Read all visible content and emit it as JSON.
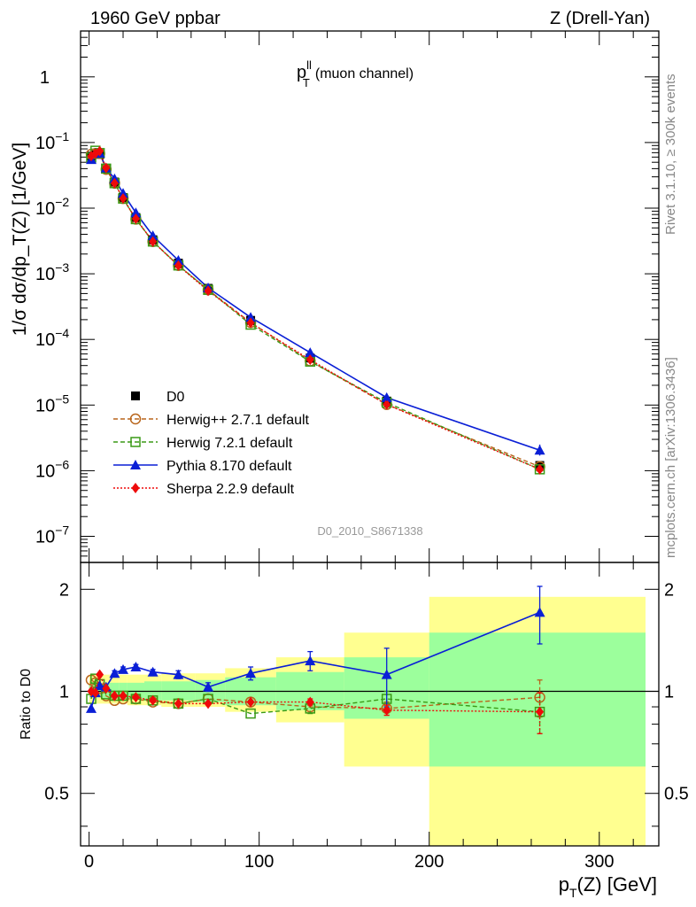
{
  "header": {
    "left": "1960 GeV ppbar",
    "right": "Z (Drell-Yan)"
  },
  "side_labels": {
    "rivet": "Rivet 3.1.10, ≥ 300k events",
    "mcplots": "mcplots.cern.ch [arXiv:1306.3436]"
  },
  "watermark": "D0_2010_S8671338",
  "colors": {
    "data": "#000000",
    "herwigpp": "#b8651b",
    "herwig7": "#3a9a16",
    "pythia": "#0a1fd6",
    "sherpa": "#ee0a0a",
    "band_inner": "#9cff9c",
    "band_outer": "#ffff90"
  },
  "chart_data": [
    {
      "type": "line",
      "title_main": "p",
      "title_sup": "ll",
      "title_sub": "T",
      "title_tail": "(muon channel)",
      "ylabel": "1/σ  dσ/dp_T(Z) [1/GeV]",
      "yscale": "log",
      "ylim": [
        4e-08,
        5
      ],
      "xlim": [
        -5,
        335
      ],
      "ytick_labels": [
        {
          "base": "1",
          "exp": ""
        },
        {
          "base": "10",
          "exp": "−1"
        },
        {
          "base": "10",
          "exp": "−2"
        },
        {
          "base": "10",
          "exp": "−3"
        },
        {
          "base": "10",
          "exp": "−4"
        },
        {
          "base": "10",
          "exp": "−5"
        },
        {
          "base": "10",
          "exp": "−6"
        },
        {
          "base": "10",
          "exp": "−7"
        }
      ],
      "ytick_values": [
        1,
        0.1,
        0.01,
        0.001,
        0.0001,
        1e-05,
        1e-06,
        1e-07
      ],
      "x": [
        1.25,
        3.75,
        6.25,
        10,
        15,
        20,
        27.5,
        37.5,
        52.5,
        70,
        95,
        130,
        175,
        265
      ],
      "bin_edges": [
        0,
        2.5,
        5,
        7.5,
        12.5,
        17.5,
        22.5,
        32.5,
        42.5,
        62.5,
        80,
        110,
        150,
        200,
        330
      ],
      "series": [
        {
          "name": "D0",
          "key": "data",
          "values": [
            0.062,
            0.069,
            0.066,
            0.04,
            0.025,
            0.0145,
            0.0072,
            0.0033,
            0.00145,
            0.0006,
            0.000195,
            5.2e-05,
            1.15e-05,
            1.2e-06
          ]
        },
        {
          "name": "Herwig++ 2.7.1 default",
          "key": "herwigpp",
          "values": [
            0.066,
            0.068,
            0.068,
            0.039,
            0.024,
            0.014,
            0.0068,
            0.0031,
            0.00134,
            0.00057,
            0.000181,
            4.7e-05,
            1.02e-05,
            1.15e-06
          ]
        },
        {
          "name": "Herwig 7.2.1 default",
          "key": "herwig7",
          "values": [
            0.059,
            0.075,
            0.069,
            0.04,
            0.024,
            0.014,
            0.0068,
            0.0031,
            0.00134,
            0.00057,
            0.000168,
            4.6e-05,
            1.09e-05,
            1.05e-06
          ]
        },
        {
          "name": "Pythia 8.170 default",
          "key": "pythia",
          "values": [
            0.055,
            0.068,
            0.069,
            0.041,
            0.028,
            0.0168,
            0.0085,
            0.0038,
            0.0016,
            0.00061,
            0.000217,
            6.3e-05,
            1.3e-05,
            2.05e-06
          ]
        },
        {
          "name": "Sherpa 2.2.9 default",
          "key": "sherpa",
          "values": [
            0.062,
            0.068,
            0.074,
            0.041,
            0.024,
            0.014,
            0.0069,
            0.0031,
            0.00133,
            0.00055,
            0.000179,
            4.9e-05,
            1.02e-05,
            1.05e-06
          ]
        }
      ]
    },
    {
      "type": "line",
      "ylabel": "Ratio to D0",
      "xlabel_main": "p",
      "xlabel_sub": "T",
      "xlabel_tail": "(Z) [GeV]",
      "yscale": "log",
      "ylim": [
        0.35,
        2.4
      ],
      "xlim": [
        -5,
        335
      ],
      "ytick_labels": [
        "0.5",
        "1",
        "2"
      ],
      "ytick_values": [
        0.5,
        1,
        2
      ],
      "xtick_labels": [
        "0",
        "100",
        "200",
        "300"
      ],
      "xtick_values": [
        0,
        100,
        200,
        300
      ],
      "x": [
        1.25,
        3.75,
        6.25,
        10,
        15,
        20,
        27.5,
        37.5,
        52.5,
        70,
        95,
        130,
        175,
        265
      ],
      "bin_edges": [
        0,
        2.5,
        5,
        7.5,
        12.5,
        17.5,
        22.5,
        32.5,
        42.5,
        62.5,
        80,
        110,
        150,
        200,
        330
      ],
      "band_inner": [
        [
          0.96,
          1.05
        ],
        [
          0.96,
          1.05
        ],
        [
          0.96,
          1.05
        ],
        [
          0.95,
          1.06
        ],
        [
          0.95,
          1.06
        ],
        [
          0.95,
          1.06
        ],
        [
          0.95,
          1.06
        ],
        [
          0.94,
          1.07
        ],
        [
          0.94,
          1.07
        ],
        [
          0.93,
          1.08
        ],
        [
          0.91,
          1.1
        ],
        [
          0.88,
          1.14
        ],
        [
          0.83,
          1.26
        ],
        [
          0.6,
          1.49
        ]
      ],
      "band_outer": [
        [
          0.92,
          1.12
        ],
        [
          0.92,
          1.12
        ],
        [
          0.92,
          1.12
        ],
        [
          0.92,
          1.12
        ],
        [
          0.92,
          1.12
        ],
        [
          0.92,
          1.12
        ],
        [
          0.91,
          1.12
        ],
        [
          0.91,
          1.12
        ],
        [
          0.9,
          1.13
        ],
        [
          0.9,
          1.13
        ],
        [
          0.87,
          1.17
        ],
        [
          0.81,
          1.26
        ],
        [
          0.6,
          1.49
        ],
        [
          0.33,
          1.9
        ]
      ],
      "series": [
        {
          "name": "Herwig++ 2.7.1 default",
          "key": "herwigpp",
          "values": [
            1.08,
            1.06,
            1.02,
            0.97,
            0.94,
            0.95,
            0.95,
            0.93,
            0.92,
            0.95,
            0.93,
            0.9,
            0.89,
            0.96
          ],
          "err": [
            0,
            0,
            0,
            0,
            0,
            0,
            0,
            0,
            0,
            0,
            0,
            0,
            0.04,
            0.12
          ]
        },
        {
          "name": "Herwig 7.2.1 default",
          "key": "herwig7",
          "values": [
            0.95,
            1.09,
            1.05,
            0.98,
            0.97,
            0.97,
            0.95,
            0.94,
            0.92,
            0.95,
            0.86,
            0.89,
            0.95,
            0.87
          ],
          "err": [
            0,
            0,
            0,
            0,
            0,
            0,
            0,
            0,
            0,
            0,
            0,
            0.03,
            0.05,
            0.12
          ]
        },
        {
          "name": "Pythia 8.170 default",
          "key": "pythia",
          "values": [
            0.89,
            0.99,
            1.04,
            1.03,
            1.13,
            1.16,
            1.18,
            1.14,
            1.12,
            1.03,
            1.13,
            1.23,
            1.12,
            1.71
          ],
          "err": [
            0,
            0,
            0,
            0,
            0.02,
            0.02,
            0.02,
            0.02,
            0.03,
            0.03,
            0.05,
            0.08,
            0.22,
            0.33
          ]
        },
        {
          "name": "Sherpa 2.2.9 default",
          "key": "sherpa",
          "values": [
            1.0,
            0.99,
            1.12,
            1.02,
            0.97,
            0.97,
            0.96,
            0.94,
            0.92,
            0.92,
            0.93,
            0.93,
            0.88,
            0.87
          ],
          "err": [
            0,
            0,
            0,
            0,
            0,
            0,
            0,
            0,
            0,
            0,
            0,
            0.02,
            0.03,
            0.12
          ]
        }
      ]
    }
  ]
}
